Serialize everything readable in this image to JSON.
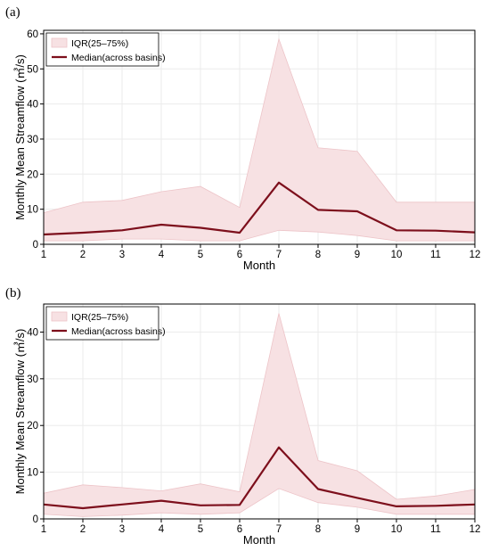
{
  "chart_data": [
    {
      "type": "line",
      "panel_label": "(a)",
      "x": [
        1,
        2,
        3,
        4,
        5,
        6,
        7,
        8,
        9,
        10,
        11,
        12
      ],
      "xlabel": "Month",
      "ylabel": "Monthly Mean Streamflow (㎥/s)",
      "xlim": [
        1,
        12
      ],
      "ylim": [
        0,
        61
      ],
      "xticks": [
        1,
        2,
        3,
        4,
        5,
        6,
        7,
        8,
        9,
        10,
        11,
        12
      ],
      "yticks": [
        0,
        10,
        20,
        30,
        40,
        50,
        60
      ],
      "grid": true,
      "legend_position": "top-left",
      "band": {
        "name": "IQR(25–75%)",
        "lower": [
          1.0,
          1.0,
          1.5,
          1.5,
          1.0,
          1.0,
          4.0,
          3.5,
          2.5,
          1.0,
          1.0,
          1.0
        ],
        "upper": [
          9.0,
          12.0,
          12.5,
          15.0,
          16.5,
          10.5,
          58.5,
          27.5,
          26.5,
          12.0,
          12.0,
          12.0
        ]
      },
      "series": [
        {
          "name": "Median(across basins)",
          "values": [
            2.8,
            3.3,
            4.0,
            5.6,
            4.7,
            3.3,
            17.6,
            9.8,
            9.4,
            4.0,
            3.9,
            3.4
          ]
        }
      ]
    },
    {
      "type": "line",
      "panel_label": "(b)",
      "x": [
        1,
        2,
        3,
        4,
        5,
        6,
        7,
        8,
        9,
        10,
        11,
        12
      ],
      "xlabel": "Month",
      "ylabel": "Monthly Mean Streamflow (㎥/s)",
      "xlim": [
        1,
        12
      ],
      "ylim": [
        0,
        46
      ],
      "xticks": [
        1,
        2,
        3,
        4,
        5,
        6,
        7,
        8,
        9,
        10,
        11,
        12
      ],
      "yticks": [
        0,
        10,
        20,
        30,
        40
      ],
      "grid": true,
      "legend_position": "top-left",
      "band": {
        "name": "IQR(25–75%)",
        "lower": [
          1.0,
          0.5,
          0.8,
          1.3,
          1.0,
          1.3,
          6.5,
          3.5,
          2.5,
          1.0,
          1.0,
          1.0
        ],
        "upper": [
          5.5,
          7.3,
          6.7,
          6.0,
          7.5,
          5.8,
          44.0,
          12.5,
          10.3,
          4.2,
          4.9,
          6.3
        ]
      },
      "series": [
        {
          "name": "Median(across basins)",
          "values": [
            3.1,
            2.3,
            3.1,
            3.9,
            2.9,
            3.0,
            15.3,
            6.4,
            4.5,
            2.7,
            2.8,
            3.1
          ]
        }
      ]
    }
  ],
  "colors": {
    "band_fill": "#f7e1e3",
    "band_stroke": "#edc4c8",
    "median_line": "#7d0f1c",
    "grid": "#ebebeb"
  }
}
